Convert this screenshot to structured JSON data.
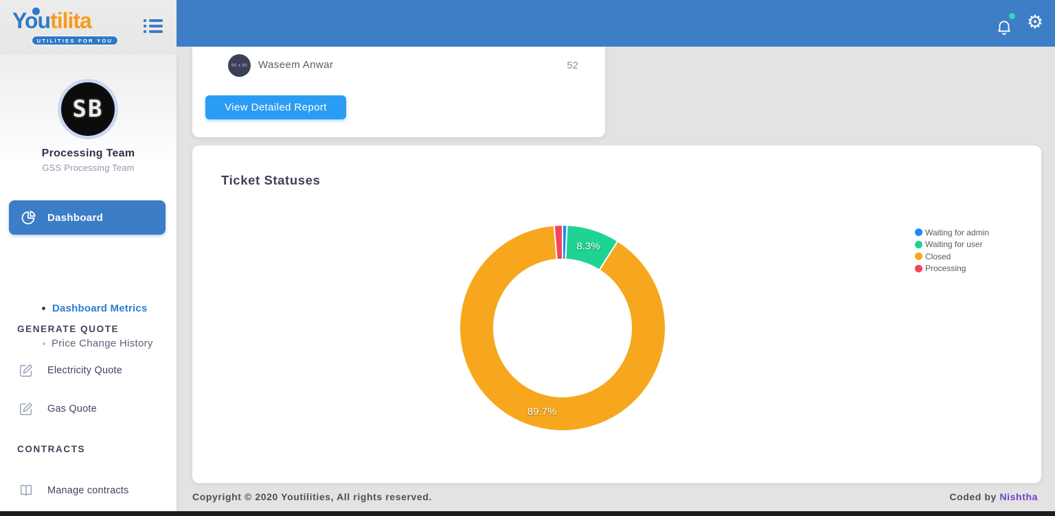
{
  "header": {
    "logo": {
      "brand_first": "You",
      "brand_second": "tilita",
      "tagline": "UTILITIES FOR YOU"
    },
    "notification_badge_color": "#35d3c7"
  },
  "sidebar": {
    "profile": {
      "avatar_text": "SB",
      "name": "Processing Team",
      "subtitle": "GSS Processing Team"
    },
    "nav": {
      "dashboard": "Dashboard",
      "dashboard_metrics": "Dashboard Metrics",
      "price_change_history": "Price Change History",
      "generate_quote_header": "GENERATE QUOTE",
      "electricity_quote": "Electricity Quote",
      "gas_quote": "Gas Quote",
      "contracts_header": "CONTRACTS",
      "manage_contracts": "Manage contracts"
    }
  },
  "report_card": {
    "user_name": "Waseem Anwar",
    "user_count": "52",
    "avatar_placeholder": "90 x 90",
    "button_label": "View Detailed Report"
  },
  "chart_card": {
    "title": "Ticket Statuses"
  },
  "chart_data": {
    "type": "doughnut",
    "title": "Ticket Statuses",
    "labels": [
      "Waiting for admin",
      "Waiting for user",
      "Closed",
      "Processing"
    ],
    "values_percent": [
      0.7,
      8.3,
      89.7,
      1.3
    ],
    "colors": [
      "#1e88f5",
      "#1fd492",
      "#f7a71d",
      "#f7435c"
    ],
    "data_labels": [
      "",
      "8.3%",
      "89.7%",
      ""
    ],
    "legend_position": "right",
    "donut_hole_ratio": 0.667,
    "slice_border_color": "#ffffff"
  },
  "footer": {
    "copyright": "Copyright © 2020 Youtilities, All rights reserved.",
    "coded_by_prefix": "Coded by",
    "coded_by_name": "Nishtha"
  }
}
